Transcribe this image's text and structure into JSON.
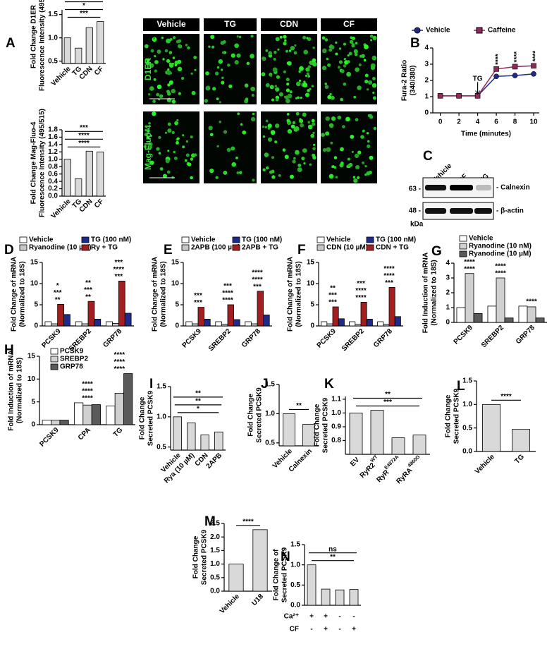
{
  "chart_data": [
    {
      "type": "bar",
      "panel": "A",
      "ylabel": [
        "Fold Change D1ER",
        "Fluorescence Intensity (495/515)"
      ],
      "categories": [
        "Vehicle",
        "TG",
        "CDN",
        "CF"
      ],
      "values": [
        1.0,
        0.78,
        1.22,
        1.35
      ],
      "color": "#d9d9d9",
      "ylim": [
        0.45,
        1.6
      ],
      "yticks": [
        0.5,
        {
          "value": 1,
          "label": "1.0"
        },
        1.5
      ],
      "annotations": [
        "***",
        "*",
        "***"
      ]
    },
    {
      "type": "bar",
      "ylabel": [
        "Fold Change Mag-Fluo-4",
        "Fluorescence Intensity (495/515)"
      ],
      "categories": [
        "Vehicle",
        "TG",
        "CDN",
        "CF"
      ],
      "values": [
        1.0,
        0.47,
        1.22,
        1.2
      ],
      "color": "#d9d9d9",
      "ylim": [
        0,
        1.8
      ],
      "yticks": [
        {
          "value": 0,
          "label": "0.0"
        },
        0.2,
        0.4,
        0.6,
        0.8,
        {
          "value": 1,
          "label": "1.0"
        },
        1.2,
        1.4,
        1.6,
        1.8
      ],
      "annotations": [
        "****",
        "****",
        "***"
      ]
    },
    {
      "type": "line",
      "panel": "B",
      "ylabel": [
        "Fura-2 Ratio",
        "(340/380)"
      ],
      "xlabel": "Time (minutes)",
      "x": [
        0,
        2,
        4,
        6,
        8,
        10
      ],
      "xlim": [
        -0.8,
        10.6
      ],
      "xticks": [
        0,
        2,
        4,
        6,
        8,
        10
      ],
      "ylim": [
        0,
        4
      ],
      "yticks": [
        0,
        1,
        2,
        3,
        4
      ],
      "arrow_label": "TG",
      "annotations": [
        null,
        null,
        null,
        "****",
        "****",
        "****"
      ],
      "series": [
        {
          "name": "Vehicle",
          "color": "#1f2a8a",
          "values": [
            1.05,
            1.05,
            1.05,
            2.25,
            2.3,
            2.4
          ]
        },
        {
          "name": "Caffeine",
          "color": "#8e2a5a",
          "values": [
            1.05,
            1.05,
            1.05,
            2.7,
            2.85,
            2.9
          ]
        }
      ]
    },
    {
      "type": "grouped-bar",
      "panel": "D",
      "ylabel": [
        "Fold Change of mRNA",
        "(Normalized to 18S)"
      ],
      "categories": [
        "PCSK9",
        "SREBP2",
        "GRP78"
      ],
      "ylim": [
        0,
        15
      ],
      "yticks": [
        0,
        5,
        10,
        15
      ],
      "series": [
        {
          "name": "Vehicle",
          "color": "#ffffff",
          "values": [
            1,
            1,
            1
          ]
        },
        {
          "name": "Ryanodine (10 µM)",
          "color": "#c8c8c8",
          "values": [
            0.5,
            0.5,
            0.6
          ]
        },
        {
          "name": "TG (100 nM)",
          "color": "#1f2a8a",
          "values": [
            2.7,
            1.6,
            3.0
          ]
        },
        {
          "name": "Ry + TG",
          "color": "#a31f1f",
          "values": [
            5.1,
            5.8,
            10.6
          ]
        }
      ],
      "draw_order": [
        0,
        1,
        3,
        2
      ],
      "annotations": [
        [
          "**",
          "***",
          "*"
        ],
        [
          "**",
          "***",
          "**"
        ],
        [
          "***",
          "****",
          "***"
        ]
      ]
    },
    {
      "type": "grouped-bar",
      "panel": "E",
      "ylabel": [
        "Fold Change of mRNA",
        "(Normalized to 18S)"
      ],
      "categories": [
        "PCSK9",
        "SREBP2",
        "GRP78"
      ],
      "ylim": [
        0,
        15
      ],
      "yticks": [
        0,
        5,
        10,
        15
      ],
      "series": [
        {
          "name": "Vehicle",
          "color": "#ffffff",
          "values": [
            1,
            1,
            1
          ]
        },
        {
          "name": "2APB (100 µM)",
          "color": "#c8c8c8",
          "values": [
            0.5,
            0.4,
            0.5
          ]
        },
        {
          "name": "TG (100 nM)",
          "color": "#1f2a8a",
          "values": [
            1.6,
            1.5,
            2.6
          ]
        },
        {
          "name": "2APB + TG",
          "color": "#a31f1f",
          "values": [
            4.4,
            5.0,
            8.2
          ]
        }
      ],
      "draw_order": [
        0,
        1,
        3,
        2
      ],
      "annotations": [
        [
          "***",
          "***"
        ],
        [
          "****",
          "****",
          "***"
        ],
        [
          "***",
          "****",
          "****"
        ]
      ]
    },
    {
      "type": "grouped-bar",
      "panel": "F",
      "ylabel": [
        "Fold Change of mRNA",
        "(Normalized to 18S)"
      ],
      "categories": [
        "PCSK9",
        "SREBP2",
        "GRP78"
      ],
      "ylim": [
        0,
        15
      ],
      "yticks": [
        0,
        5,
        10,
        15
      ],
      "series": [
        {
          "name": "Vehicle",
          "color": "#ffffff",
          "values": [
            1,
            1,
            1
          ]
        },
        {
          "name": "CDN (10 µM)",
          "color": "#c8c8c8",
          "values": [
            0.5,
            0.4,
            0.4
          ]
        },
        {
          "name": "TG (100 nM)",
          "color": "#1f2a8a",
          "values": [
            1.7,
            1.6,
            2.2
          ]
        },
        {
          "name": "CDN + TG",
          "color": "#a31f1f",
          "values": [
            4.5,
            5.6,
            9.1
          ]
        }
      ],
      "draw_order": [
        0,
        1,
        3,
        2
      ],
      "annotations": [
        [
          "***",
          "***",
          "**"
        ],
        [
          "****",
          "****",
          "***"
        ],
        [
          "***",
          "****",
          "****"
        ]
      ]
    },
    {
      "type": "grouped-bar",
      "panel": "G",
      "ylabel": [
        "Fold Induction of mRNA",
        "(Normalized to 18S)"
      ],
      "categories": [
        "PCSK9",
        "SREBP2",
        "GRP78"
      ],
      "ylim": [
        0,
        4
      ],
      "yticks": [
        0,
        1,
        2,
        3,
        4
      ],
      "series": [
        {
          "name": "Vehicle",
          "color": "#ffffff",
          "values": [
            1.0,
            1.1,
            1.1
          ]
        },
        {
          "name": "Ryanodine (10 nM)",
          "color": "#d0d0d0",
          "values": [
            3.3,
            3.0,
            1.05
          ]
        },
        {
          "name": "Ryanodine (10 µM)",
          "color": "#5a5a5a",
          "values": [
            0.6,
            0.3,
            0.3
          ]
        }
      ],
      "draw_order": [
        0,
        1,
        2
      ],
      "annotations": [
        [
          "****",
          "****"
        ],
        [
          "****",
          "****"
        ],
        [
          "****"
        ]
      ]
    },
    {
      "type": "grouped-bar",
      "panel": "H",
      "ylabel": [
        "Fold Induction of mRNA",
        "(Normalized to 18S)"
      ],
      "categories": [
        "PCSK9",
        "CPA",
        "TG"
      ],
      "ylim": [
        0,
        15
      ],
      "yticks": [
        0,
        5,
        10,
        15
      ],
      "series": [
        {
          "name": "PCSK9",
          "color": "#ffffff",
          "values": [
            1,
            4.8,
            4.1
          ]
        },
        {
          "name": "SREBP2",
          "color": "#d0d0d0",
          "values": [
            1,
            4.3,
            6.9
          ]
        },
        {
          "name": "GRP78",
          "color": "#5a5a5a",
          "values": [
            1,
            4.4,
            11.2
          ]
        }
      ],
      "draw_order": [
        0,
        1,
        2
      ],
      "annotations": [
        [],
        [
          "****",
          "****",
          "****"
        ],
        [
          "****",
          "****",
          "****"
        ]
      ]
    },
    {
      "type": "bar",
      "panel": "I",
      "ylabel": [
        "Fold Change",
        "Secreted PCSK9"
      ],
      "categories": [
        "Vehicle",
        "Rya (10 µM)",
        "CDN",
        "2APB"
      ],
      "values": [
        1.0,
        0.9,
        0.7,
        0.75
      ],
      "color": "#d9d9d9",
      "ylim": [
        0.45,
        1.5
      ],
      "yticks": [
        0.5,
        {
          "value": 1,
          "label": "1.0"
        },
        1.5
      ],
      "annotations": [
        "*",
        "**",
        "**"
      ]
    },
    {
      "type": "bar",
      "panel": "J",
      "ylabel": [
        "Fold Change",
        "Secreted PCSK9"
      ],
      "categories": [
        "Vehicle",
        "Calnexin"
      ],
      "values": [
        1.0,
        0.82
      ],
      "color": "#d9d9d9",
      "ylim": [
        0.45,
        1.5
      ],
      "yticks": [
        0.5,
        {
          "value": 1,
          "label": "1.0"
        },
        1.5
      ],
      "annotations": [
        "**"
      ]
    },
    {
      "type": "bar",
      "panel": "K",
      "ylabel": [
        "Fold Change",
        "Secreted PCSK9"
      ],
      "categories": [
        "EV",
        "RyR2",
        "RyR",
        "RyRA"
      ],
      "category_superscripts": [
        null,
        "WT",
        "E4872A",
        "4860G"
      ],
      "values": [
        1.0,
        1.02,
        0.82,
        0.84
      ],
      "color": "#d9d9d9",
      "ylim": [
        0.7,
        1.12
      ],
      "yticks": [
        0.8,
        0.9,
        {
          "value": 1,
          "label": "1.0"
        },
        1.1
      ],
      "annotations": [
        "***",
        "**"
      ]
    },
    {
      "type": "bar",
      "panel": "L",
      "ylabel": [
        "Fold Change",
        "Secreted PCSK9"
      ],
      "categories": [
        "Vehicle",
        "TG"
      ],
      "values": [
        1.0,
        0.47
      ],
      "color": "#d9d9d9",
      "ylim": [
        0,
        1.5
      ],
      "yticks": [
        {
          "value": 0,
          "label": "0.0"
        },
        0.5,
        {
          "value": 1,
          "label": "1.0"
        },
        1.5
      ],
      "annotations": [
        "****"
      ]
    },
    {
      "type": "bar",
      "panel": "M",
      "ylabel": [
        "Fold Change",
        "Secreted PCSK9"
      ],
      "categories": [
        "Vehicle",
        "U18"
      ],
      "values": [
        1.0,
        2.27
      ],
      "color": "#d9d9d9",
      "ylim": [
        0,
        2.5
      ],
      "yticks": [
        {
          "value": 0,
          "label": "0.0"
        },
        0.5,
        {
          "value": 1,
          "label": "1.0"
        },
        1.5,
        {
          "value": 2,
          "label": "2.0"
        },
        2.5
      ],
      "annotations": [
        "****"
      ]
    },
    {
      "type": "bar",
      "panel": "N",
      "ylabel": [
        "Fold  Change of",
        "Secreted PCSK9"
      ],
      "values": [
        1.0,
        0.4,
        0.38,
        0.39
      ],
      "color": "#d9d9d9",
      "ylim": [
        0,
        1.5
      ],
      "yticks": [
        {
          "value": 0,
          "label": "0.0"
        },
        0.5,
        {
          "value": 1,
          "label": "1.0"
        },
        1.5
      ],
      "annotations": [
        "**",
        "ns"
      ],
      "condition_rows": [
        {
          "label": "Ca²⁺",
          "signs": [
            "+",
            "+",
            "-",
            "-"
          ]
        },
        {
          "label": "CF",
          "signs": [
            "-",
            "+",
            "-",
            "+"
          ]
        }
      ]
    }
  ],
  "images": {
    "columns": [
      "Vehicle",
      "TG",
      "CDN",
      "CF"
    ],
    "rows": [
      "D1ER",
      "Mag-Fluo-4"
    ]
  },
  "blot": {
    "panel": "C",
    "lanes": [
      "Vehicle",
      "CF",
      "TG"
    ],
    "bands": [
      "- Calnexin",
      "- β-actin"
    ],
    "markers": [
      "63 -",
      "48 -"
    ],
    "unit": "kDa"
  }
}
